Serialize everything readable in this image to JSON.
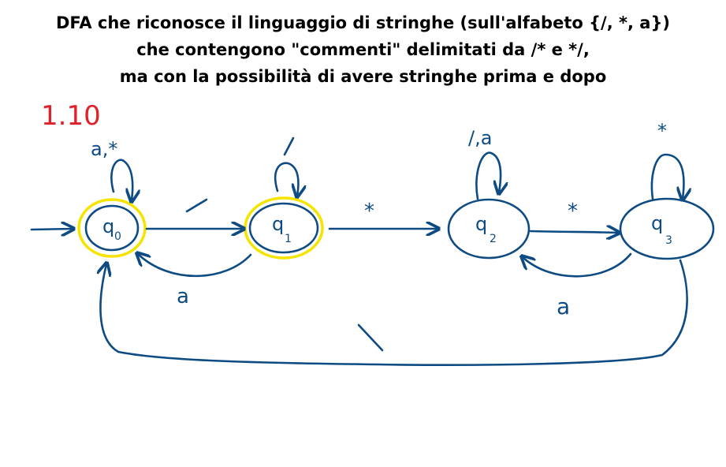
{
  "title_lines": [
    "DFA che riconosce il linguaggio di stringhe (sull'alfabeto {/, *, a})",
    "che contengono \"commenti\" delimitati da /* e */,",
    "ma con la possibilità di avere stringhe prima e dopo"
  ],
  "exercise_number": "1.10",
  "colors": {
    "ink": "#0d4b82",
    "accept_highlight": "#f5e400",
    "exercise_number": "#e0202a"
  },
  "states": [
    {
      "id": "q0",
      "base": "q",
      "sub": "0",
      "start": true,
      "accepting": true
    },
    {
      "id": "q1",
      "base": "q",
      "sub": "1",
      "start": false,
      "accepting": true
    },
    {
      "id": "q2",
      "base": "q",
      "sub": "2",
      "start": false,
      "accepting": false
    },
    {
      "id": "q3",
      "base": "q",
      "sub": "3",
      "start": false,
      "accepting": false
    }
  ],
  "transitions": [
    {
      "from": "q0",
      "to": "q0",
      "label": "a,*"
    },
    {
      "from": "q0",
      "to": "q1",
      "label": "/"
    },
    {
      "from": "q1",
      "to": "q1",
      "label": "/"
    },
    {
      "from": "q1",
      "to": "q0",
      "label": "a"
    },
    {
      "from": "q1",
      "to": "q2",
      "label": "*"
    },
    {
      "from": "q2",
      "to": "q2",
      "label": "/,a"
    },
    {
      "from": "q2",
      "to": "q3",
      "label": "*"
    },
    {
      "from": "q3",
      "to": "q3",
      "label": "*"
    },
    {
      "from": "q3",
      "to": "q2",
      "label": "a"
    },
    {
      "from": "q3",
      "to": "q0",
      "label": "/"
    }
  ]
}
